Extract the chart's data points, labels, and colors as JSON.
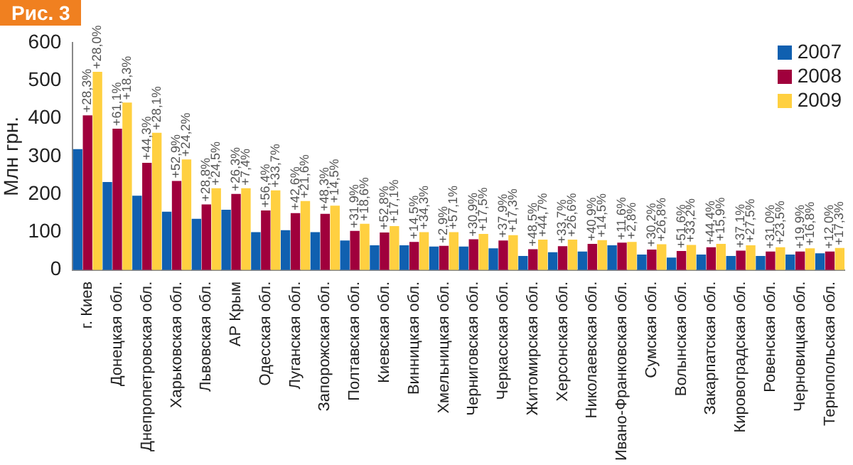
{
  "chart_data": {
    "type": "bar",
    "title": "Рис. 3",
    "ylabel": "Млн грн.",
    "categories": [
      "г. Киев",
      "Донецкая обл.",
      "Днепропетровская обл.",
      "Харьковская обл.",
      "Львовская обл.",
      "АР Крым",
      "Одесская обл.",
      "Луганская обл.",
      "Запорожская обл.",
      "Полтавская обл.",
      "Киевская обл.",
      "Винницкая обл.",
      "Хмельницкая обл.",
      "Черниговская обл.",
      "Черкасская обл.",
      "Житомирская обл.",
      "Херсонская обл.",
      "Николаевская обл.",
      "Ивано-Франковская обл.",
      "Сумская обл.",
      "Волынская обл.",
      "Закарпатская обл.",
      "Кировоградская обл.",
      "Ровенская обл.",
      "Черновицкая обл.",
      "Тернопольская обл."
    ],
    "series": [
      {
        "name": "2007",
        "color": "#1060b0",
        "values": [
          319,
          232,
          196,
          154,
          135,
          159,
          100,
          105,
          100,
          78,
          65,
          65,
          62,
          62,
          57,
          37,
          47,
          49,
          65,
          41,
          33,
          41,
          37,
          37,
          41,
          44
        ]
      },
      {
        "name": "2008",
        "color": "#a0003c",
        "values": [
          408,
          373,
          283,
          235,
          173,
          201,
          157,
          150,
          148,
          103,
          99,
          74,
          64,
          81,
          78,
          55,
          63,
          69,
          72,
          54,
          50,
          60,
          51,
          49,
          49,
          49
        ]
      },
      {
        "name": "2009",
        "color": "#ffd040",
        "values": [
          523,
          442,
          362,
          292,
          216,
          216,
          210,
          182,
          170,
          122,
          116,
          100,
          100,
          95,
          92,
          80,
          80,
          79,
          74,
          68,
          66,
          69,
          65,
          60,
          57,
          58
        ]
      }
    ],
    "annotations": [
      {
        "text": "+28,3%",
        "x": "г. Киев",
        "y": 408
      },
      {
        "text": "+28,0%",
        "x": "г. Киев",
        "y": 523
      },
      {
        "text": "+61,1%",
        "x": "Донецкая обл.",
        "y": 373
      },
      {
        "text": "+18,3%",
        "x": "Донецкая обл.",
        "y": 442
      },
      {
        "text": "+44,3%",
        "x": "Днепропетровская обл.",
        "y": 283
      },
      {
        "text": "+28,1%",
        "x": "Днепропетровская обл.",
        "y": 362
      },
      {
        "text": "+52,9%",
        "x": "Харьковская обл.",
        "y": 235
      },
      {
        "text": "+24,2%",
        "x": "Харьковская обл.",
        "y": 292
      },
      {
        "text": "+28,8%",
        "x": "Львовская обл.",
        "y": 173
      },
      {
        "text": "+24,5%",
        "x": "Львовская обл.",
        "y": 216
      },
      {
        "text": "+26,3%",
        "x": "АР Крым",
        "y": 201
      },
      {
        "text": "+7,4%",
        "x": "АР Крым",
        "y": 216
      },
      {
        "text": "+56,4%",
        "x": "Одесская обл.",
        "y": 157
      },
      {
        "text": "+33,7%",
        "x": "Одесская обл.",
        "y": 210
      },
      {
        "text": "+42,6%",
        "x": "Луганская обл.",
        "y": 150
      },
      {
        "text": "+21,6%",
        "x": "Луганская обл.",
        "y": 182
      },
      {
        "text": "+48,3%",
        "x": "Запорожская обл.",
        "y": 148
      },
      {
        "text": "+14,5%",
        "x": "Запорожская обл.",
        "y": 170
      },
      {
        "text": "+31,9%",
        "x": "Полтавская обл.",
        "y": 103
      },
      {
        "text": "+18,6%",
        "x": "Полтавская обл.",
        "y": 122
      },
      {
        "text": "+52,8%",
        "x": "Киевская обл.",
        "y": 99
      },
      {
        "text": "+17,1%",
        "x": "Киевская обл.",
        "y": 116
      },
      {
        "text": "+14,5%",
        "x": "Винницкая обл.",
        "y": 74
      },
      {
        "text": "+34,3%",
        "x": "Винницкая обл.",
        "y": 100
      },
      {
        "text": "+2,9%",
        "x": "Хмельницкая обл.",
        "y": 64
      },
      {
        "text": "+57,1%",
        "x": "Хмельницкая обл.",
        "y": 100
      },
      {
        "text": "+30,9%",
        "x": "Черниговская обл.",
        "y": 81
      },
      {
        "text": "+17,5%",
        "x": "Черниговская обл.",
        "y": 95
      },
      {
        "text": "+37,9%",
        "x": "Черкасская обл.",
        "y": 78
      },
      {
        "text": "+17,3%",
        "x": "Черкасская обл.",
        "y": 92
      },
      {
        "text": "+48,5%",
        "x": "Житомирская обл.",
        "y": 55
      },
      {
        "text": "+44,7%",
        "x": "Житомирская обл.",
        "y": 80
      },
      {
        "text": "+33,7%",
        "x": "Херсонская обл.",
        "y": 63
      },
      {
        "text": "+26,6%",
        "x": "Херсонская обл.",
        "y": 80
      },
      {
        "text": "+40,9%",
        "x": "Николаевская обл.",
        "y": 69
      },
      {
        "text": "+14,5%",
        "x": "Николаевская обл.",
        "y": 79
      },
      {
        "text": "+11,6%",
        "x": "Ивано-Франковская обл.",
        "y": 72
      },
      {
        "text": "+2,8%",
        "x": "Ивано-Франковская обл.",
        "y": 74
      },
      {
        "text": "+30,2%",
        "x": "Сумская обл.",
        "y": 54
      },
      {
        "text": "+26,8%",
        "x": "Сумская обл.",
        "y": 68
      },
      {
        "text": "+51,6%",
        "x": "Волынская обл.",
        "y": 50
      },
      {
        "text": "+33,2%",
        "x": "Волынская обл.",
        "y": 66
      },
      {
        "text": "+44,4%",
        "x": "Закарпатская обл.",
        "y": 60
      },
      {
        "text": "+15,9%",
        "x": "Закарпатская обл.",
        "y": 69
      },
      {
        "text": "+37,1%",
        "x": "Кировоградская обл.",
        "y": 51
      },
      {
        "text": "+27,5%",
        "x": "Кировоградская обл.",
        "y": 65
      },
      {
        "text": "+31,0%",
        "x": "Ровенская обл.",
        "y": 49
      },
      {
        "text": "+23,5%",
        "x": "Ровенская обл.",
        "y": 60
      },
      {
        "text": "+19,9%",
        "x": "Черновицкая обл.",
        "y": 49
      },
      {
        "text": "+16,8%",
        "x": "Черновицкая обл.",
        "y": 57
      },
      {
        "text": "+12,0%",
        "x": "Тернопольская обл.",
        "y": 49
      },
      {
        "text": "+17,3%",
        "x": "Тернопольская обл.",
        "y": 58
      }
    ],
    "ylim": [
      0,
      600
    ],
    "yticks": [
      0,
      100,
      200,
      300,
      400,
      500,
      600
    ],
    "legend": "top right"
  }
}
